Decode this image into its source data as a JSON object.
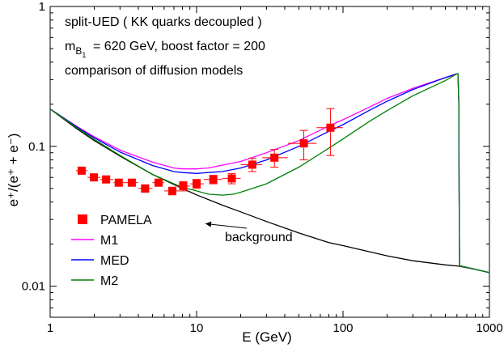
{
  "chart_data": {
    "type": "line",
    "title_lines": [
      "split-UED ( KK quarks decoupled )",
      "= 620 GeV, boost factor = 200",
      "comparison of diffusion models"
    ],
    "mass_label": {
      "symbol": "m",
      "sub": "B",
      "subsub": "1"
    },
    "xlabel": "E (GeV)",
    "ylabel": "e⁺/(e⁺ + e⁻)",
    "xscale": "log",
    "yscale": "log",
    "xlim": [
      1,
      1000
    ],
    "ylim": [
      0.006,
      1
    ],
    "x_ticks": [
      {
        "v": 1,
        "label": "1"
      },
      {
        "v": 10,
        "label": "10"
      },
      {
        "v": 100,
        "label": "100"
      },
      {
        "v": 1000,
        "label": "1000"
      }
    ],
    "y_ticks": [
      {
        "v": 0.01,
        "label": "0.01"
      },
      {
        "v": 0.1,
        "label": "0.1"
      },
      {
        "v": 1,
        "label": "1"
      }
    ],
    "legend": [
      {
        "name": "PAMELA",
        "kind": "marker",
        "color": "#ff0000"
      },
      {
        "name": "M1",
        "kind": "line",
        "color": "#ff00ff"
      },
      {
        "name": "MED",
        "kind": "line",
        "color": "#0000ff"
      },
      {
        "name": "M2",
        "kind": "line",
        "color": "#008000"
      }
    ],
    "annotation": {
      "text": "background",
      "arrow_to": {
        "x": 11.5,
        "y": 0.028
      }
    },
    "series": [
      {
        "name": "background",
        "color": "#000000",
        "points": [
          [
            1,
            0.185
          ],
          [
            1.5,
            0.135
          ],
          [
            2,
            0.11
          ],
          [
            3,
            0.085
          ],
          [
            5,
            0.063
          ],
          [
            8,
            0.05
          ],
          [
            10,
            0.045
          ],
          [
            15,
            0.038
          ],
          [
            20,
            0.034
          ],
          [
            30,
            0.029
          ],
          [
            50,
            0.024
          ],
          [
            80,
            0.0205
          ],
          [
            100,
            0.0195
          ],
          [
            200,
            0.0165
          ],
          [
            300,
            0.0152
          ],
          [
            500,
            0.0142
          ],
          [
            620,
            0.0139
          ],
          [
            800,
            0.0132
          ],
          [
            1000,
            0.0125
          ]
        ]
      },
      {
        "name": "M1",
        "color": "#ff00ff",
        "points": [
          [
            1,
            0.185
          ],
          [
            1.5,
            0.14
          ],
          [
            2,
            0.117
          ],
          [
            3,
            0.094
          ],
          [
            5,
            0.077
          ],
          [
            7,
            0.07
          ],
          [
            8,
            0.069
          ],
          [
            10,
            0.069
          ],
          [
            12,
            0.07
          ],
          [
            20,
            0.078
          ],
          [
            30,
            0.09
          ],
          [
            50,
            0.11
          ],
          [
            80,
            0.14
          ],
          [
            100,
            0.155
          ],
          [
            150,
            0.19
          ],
          [
            200,
            0.22
          ],
          [
            300,
            0.26
          ],
          [
            500,
            0.31
          ],
          [
            600,
            0.33
          ],
          [
            610,
            0.33
          ],
          [
            618,
            0.2
          ],
          [
            621,
            0.05
          ],
          [
            625,
            0.014
          ],
          [
            800,
            0.0132
          ],
          [
            1000,
            0.0125
          ]
        ]
      },
      {
        "name": "MED",
        "color": "#0000ff",
        "points": [
          [
            1,
            0.185
          ],
          [
            1.5,
            0.139
          ],
          [
            2,
            0.115
          ],
          [
            3,
            0.091
          ],
          [
            5,
            0.073
          ],
          [
            7,
            0.066
          ],
          [
            8,
            0.065
          ],
          [
            10,
            0.064
          ],
          [
            12,
            0.065
          ],
          [
            15,
            0.066
          ],
          [
            20,
            0.07
          ],
          [
            30,
            0.08
          ],
          [
            50,
            0.1
          ],
          [
            80,
            0.128
          ],
          [
            100,
            0.143
          ],
          [
            150,
            0.18
          ],
          [
            200,
            0.21
          ],
          [
            300,
            0.255
          ],
          [
            500,
            0.31
          ],
          [
            600,
            0.33
          ],
          [
            610,
            0.33
          ],
          [
            618,
            0.2
          ],
          [
            621,
            0.05
          ],
          [
            625,
            0.014
          ],
          [
            800,
            0.0132
          ],
          [
            1000,
            0.0125
          ]
        ]
      },
      {
        "name": "M2",
        "color": "#008000",
        "points": [
          [
            1,
            0.185
          ],
          [
            1.5,
            0.137
          ],
          [
            2,
            0.112
          ],
          [
            3,
            0.086
          ],
          [
            5,
            0.063
          ],
          [
            7,
            0.054
          ],
          [
            8,
            0.051
          ],
          [
            10,
            0.048
          ],
          [
            12,
            0.0455
          ],
          [
            15,
            0.0448
          ],
          [
            18,
            0.0455
          ],
          [
            20,
            0.047
          ],
          [
            30,
            0.054
          ],
          [
            50,
            0.071
          ],
          [
            80,
            0.097
          ],
          [
            100,
            0.113
          ],
          [
            150,
            0.15
          ],
          [
            200,
            0.18
          ],
          [
            300,
            0.23
          ],
          [
            500,
            0.295
          ],
          [
            600,
            0.33
          ],
          [
            610,
            0.33
          ],
          [
            618,
            0.2
          ],
          [
            621,
            0.05
          ],
          [
            625,
            0.014
          ],
          [
            800,
            0.0132
          ],
          [
            1000,
            0.0125
          ]
        ]
      }
    ],
    "pamela": [
      {
        "x": 1.64,
        "y": 0.067,
        "xlo": 1.5,
        "xhi": 1.8,
        "err": 0.003
      },
      {
        "x": 1.99,
        "y": 0.06,
        "xlo": 1.8,
        "xhi": 2.2,
        "err": 0.003
      },
      {
        "x": 2.41,
        "y": 0.058,
        "xlo": 2.2,
        "xhi": 2.7,
        "err": 0.003
      },
      {
        "x": 2.94,
        "y": 0.055,
        "xlo": 2.7,
        "xhi": 3.3,
        "err": 0.003
      },
      {
        "x": 3.61,
        "y": 0.055,
        "xlo": 3.3,
        "xhi": 4.0,
        "err": 0.003
      },
      {
        "x": 4.45,
        "y": 0.05,
        "xlo": 4.0,
        "xhi": 5.0,
        "err": 0.003
      },
      {
        "x": 5.5,
        "y": 0.055,
        "xlo": 5.0,
        "xhi": 6.0,
        "err": 0.003
      },
      {
        "x": 6.83,
        "y": 0.048,
        "xlo": 6.0,
        "xhi": 7.6,
        "err": 0.003
      },
      {
        "x": 8.1,
        "y": 0.052,
        "xlo": 7.2,
        "xhi": 9.0,
        "err": 0.004
      },
      {
        "x": 10.0,
        "y": 0.054,
        "xlo": 9.0,
        "xhi": 11.2,
        "err": 0.004
      },
      {
        "x": 13.0,
        "y": 0.058,
        "xlo": 11.2,
        "xhi": 15.0,
        "err": 0.004
      },
      {
        "x": 17.4,
        "y": 0.059,
        "xlo": 15.0,
        "xhi": 20.0,
        "err": 0.005
      },
      {
        "x": 24.0,
        "y": 0.074,
        "xlo": 20.0,
        "xhi": 28.0,
        "err": 0.008
      },
      {
        "x": 34.0,
        "y": 0.083,
        "xlo": 28.0,
        "xhi": 42.0,
        "err": 0.012
      },
      {
        "x": 54.0,
        "y": 0.105,
        "xlo": 42.0,
        "xhi": 66.0,
        "err": 0.025
      },
      {
        "x": 82.0,
        "y": 0.136,
        "xlo": 66.0,
        "xhi": 100.0,
        "err": 0.05
      }
    ]
  }
}
